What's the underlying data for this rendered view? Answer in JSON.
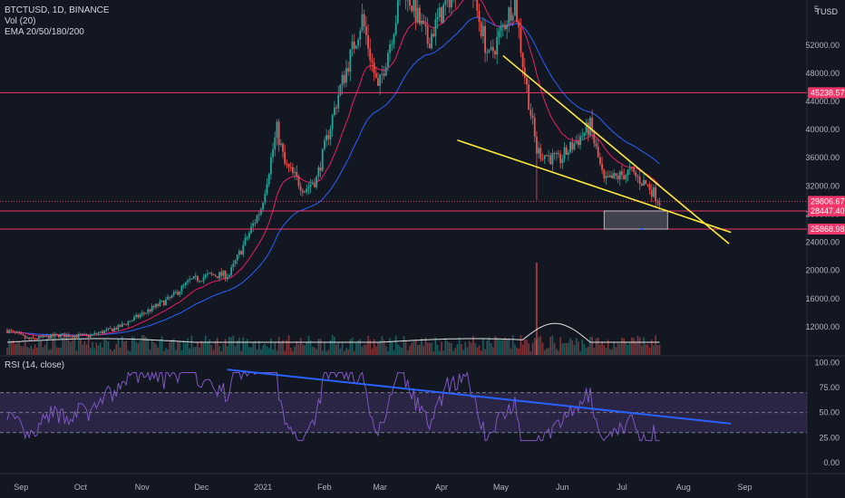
{
  "legend": {
    "symbol_line": "BTCTUSD, 1D, BINANCE",
    "vol_line": "Vol (20)",
    "ema_line": "EMA 20/50/180/200"
  },
  "rsi_legend": "RSI (14, close)",
  "currency_label": "TUSD",
  "price_axis": {
    "min": 8000,
    "max": 58400,
    "ticks": [
      "52000.00",
      "48000.00",
      "44000.00",
      "40000.00",
      "36000.00",
      "32000.00",
      "28000.00",
      "24000.00",
      "20000.00",
      "16000.00",
      "12000.00"
    ],
    "tick_values": [
      52000,
      48000,
      44000,
      40000,
      36000,
      32000,
      28000,
      24000,
      20000,
      16000,
      12000
    ],
    "top_partial_label": "5"
  },
  "price_labels": [
    {
      "text": "45238.57",
      "value": 45238.57,
      "color": "#f23669"
    },
    {
      "text": "29806.67",
      "value": 29806.67,
      "color": "#f23669",
      "sub": "16:45:13"
    },
    {
      "text": "28447.40",
      "value": 28447.4,
      "color": "#f23669"
    },
    {
      "text": "25868.98",
      "value": 25868.98,
      "color": "#f23669"
    }
  ],
  "rsi_axis": {
    "min": -10,
    "max": 104,
    "ticks": [
      "100.00",
      "75.00",
      "50.00",
      "25.00",
      "0.00"
    ],
    "tick_values": [
      100,
      75,
      50,
      25,
      0
    ],
    "band": [
      30,
      70
    ]
  },
  "time_axis": [
    "Sep",
    "Oct",
    "Nov",
    "Dec",
    "2021",
    "Feb",
    "Mar",
    "Apr",
    "May",
    "Jun",
    "Jul",
    "Aug",
    "Sep"
  ],
  "colors": {
    "up": "#26a69a",
    "down": "#ef5350",
    "ema20": "#e91e63",
    "ema50": "#2962ff",
    "vol_ma": "#e0e0e0",
    "hline": "#f23669",
    "trend": "#ffeb3b",
    "rsi": "#7e57c2",
    "rsi_trend": "#2962ff"
  },
  "chart_data": {
    "type": "candlestick",
    "title": "BTCTUSD, 1D, BINANCE",
    "x_range": [
      "2020-08-25",
      "2021-09-14"
    ],
    "y_range": [
      8000,
      58400
    ],
    "close_series": [
      [
        "2020-08-25",
        11500
      ],
      [
        "2020-09-05",
        10200
      ],
      [
        "2020-09-20",
        10800
      ],
      [
        "2020-10-05",
        10700
      ],
      [
        "2020-10-20",
        11900
      ],
      [
        "2020-11-01",
        13800
      ],
      [
        "2020-11-15",
        16000
      ],
      [
        "2020-11-25",
        18500
      ],
      [
        "2020-12-05",
        19300
      ],
      [
        "2020-12-15",
        19400
      ],
      [
        "2020-12-22",
        23500
      ],
      [
        "2020-12-31",
        28900
      ],
      [
        "2021-01-08",
        40000
      ],
      [
        "2021-01-12",
        35000
      ],
      [
        "2021-01-22",
        31500
      ],
      [
        "2021-01-28",
        33000
      ],
      [
        "2021-02-08",
        45000
      ],
      [
        "2021-02-20",
        55800
      ],
      [
        "2021-02-28",
        45500
      ],
      [
        "2021-03-13",
        60500
      ],
      [
        "2021-03-25",
        52500
      ],
      [
        "2021-04-13",
        63500
      ],
      [
        "2021-04-25",
        50000
      ],
      [
        "2021-05-08",
        58500
      ],
      [
        "2021-05-12",
        49500
      ],
      [
        "2021-05-19",
        37000
      ],
      [
        "2021-05-30",
        35500
      ],
      [
        "2021-06-15",
        40500
      ],
      [
        "2021-06-22",
        32500
      ],
      [
        "2021-07-05",
        34000
      ],
      [
        "2021-07-15",
        31800
      ],
      [
        "2021-07-20",
        29806.67
      ]
    ],
    "horizontal_levels": [
      45238.57,
      29806.67,
      28447.4,
      25868.98
    ],
    "trendlines": [
      {
        "from": [
          "2021-05-02",
          50500
        ],
        "to": [
          "2021-08-24",
          23800
        ]
      },
      {
        "from": [
          "2021-04-09",
          38500
        ],
        "to": [
          "2021-08-25",
          25400
        ]
      }
    ],
    "rsi_trendline": {
      "from": [
        "2020-12-14",
        93
      ],
      "to": [
        "2021-08-25",
        39
      ]
    },
    "rsi_band": [
      30,
      70
    ]
  }
}
